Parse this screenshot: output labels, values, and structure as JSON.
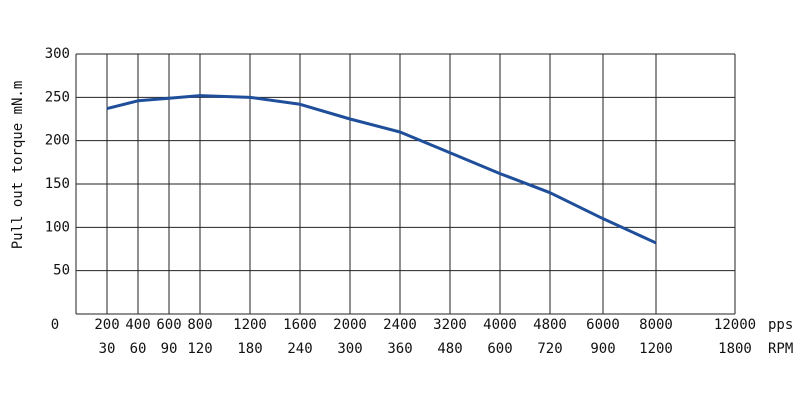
{
  "chart_data": {
    "type": "line",
    "y_label": "Pull out torque mN.m",
    "x_label": "pps",
    "x2_label": "RPM",
    "categories": [
      "200",
      "400",
      "600",
      "800",
      "1200",
      "1600",
      "2000",
      "2400",
      "3200",
      "4000",
      "4800",
      "6000",
      "8000",
      "12000"
    ],
    "categories_rpm": [
      "30",
      "60",
      "90",
      "120",
      "180",
      "240",
      "300",
      "360",
      "480",
      "600",
      "720",
      "900",
      "1200",
      "1800"
    ],
    "series": [
      {
        "name": "Pull out torque",
        "color": "#1f4e9a",
        "values": [
          237,
          246,
          249,
          252,
          250,
          242,
          225,
          210,
          186,
          162,
          140,
          110,
          82,
          null
        ]
      }
    ],
    "ylim": [
      0,
      300
    ],
    "yticks": [
      0,
      50,
      100,
      150,
      200,
      250,
      300
    ],
    "grid": true
  }
}
